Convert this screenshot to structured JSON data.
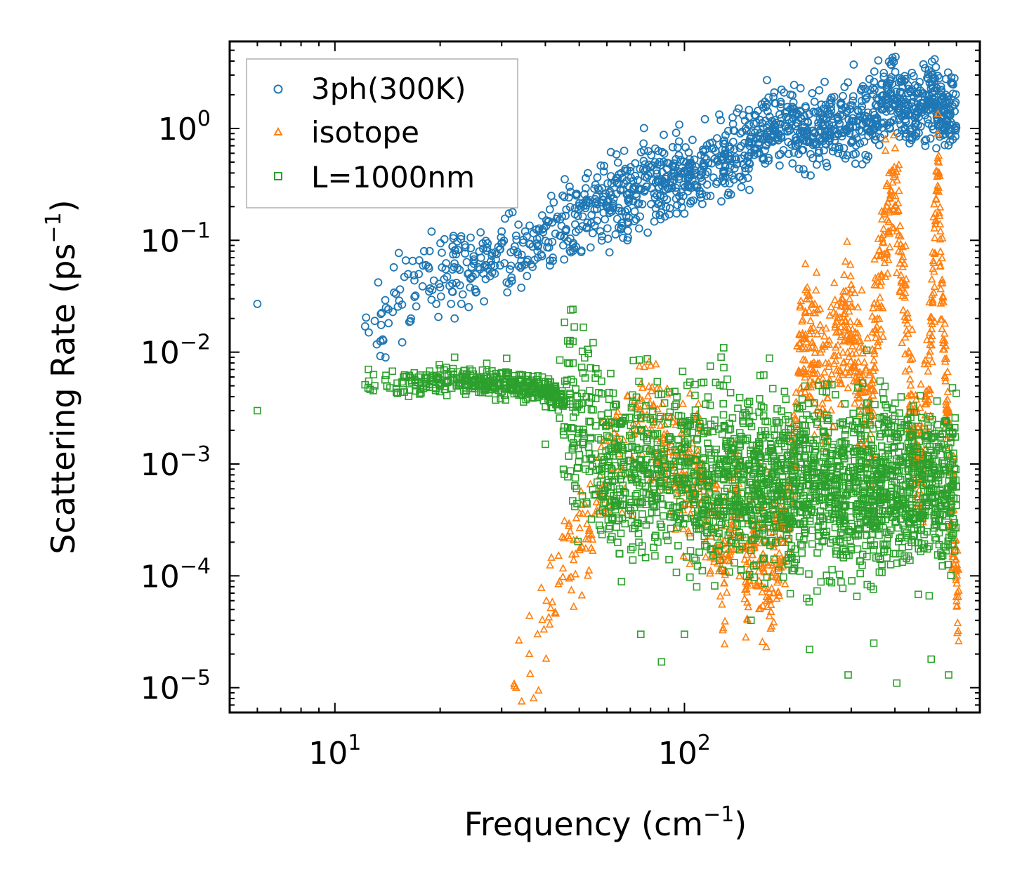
{
  "chart_data": {
    "type": "scatter",
    "xscale": "log",
    "yscale": "log",
    "xlim": [
      5,
      700
    ],
    "ylim": [
      6e-06,
      6
    ],
    "xlabel": {
      "base": "Frequency (cm",
      "sup": "−1",
      "close": ")"
    },
    "ylabel": {
      "base": "Scattering Rate (ps",
      "sup": "−1",
      "close": ")"
    },
    "x_ticks": [
      {
        "value": 10,
        "base": "10",
        "exp": "1"
      },
      {
        "value": 100,
        "base": "10",
        "exp": "2"
      }
    ],
    "y_ticks": [
      {
        "value": 1,
        "base": "10",
        "exp": "0"
      },
      {
        "value": 0.1,
        "base": "10",
        "exp": "−1"
      },
      {
        "value": 0.01,
        "base": "10",
        "exp": "−2"
      },
      {
        "value": 0.001,
        "base": "10",
        "exp": "−3"
      },
      {
        "value": 0.0001,
        "base": "10",
        "exp": "−4"
      },
      {
        "value": 1e-05,
        "base": "10",
        "exp": "−5"
      }
    ],
    "legend_position": "top-left",
    "series": [
      {
        "name": "3ph(300K)",
        "marker": "circle",
        "color": "#1f77b4",
        "trend": [
          [
            12,
            0.017
          ],
          [
            13,
            0.015
          ],
          [
            15,
            0.03
          ],
          [
            18,
            0.04
          ],
          [
            22,
            0.06
          ],
          [
            30,
            0.07
          ],
          [
            40,
            0.1
          ],
          [
            50,
            0.15
          ],
          [
            60,
            0.22
          ],
          [
            80,
            0.33
          ],
          [
            100,
            0.38
          ],
          [
            140,
            0.55
          ],
          [
            170,
            1.0
          ],
          [
            200,
            1.1
          ],
          [
            230,
            0.9
          ],
          [
            280,
            1.1
          ],
          [
            340,
            1.4
          ],
          [
            380,
            1.8
          ],
          [
            400,
            2.5
          ],
          [
            430,
            1.5
          ],
          [
            480,
            1.7
          ],
          [
            520,
            2.0
          ],
          [
            560,
            1.2
          ],
          [
            600,
            1.5
          ]
        ],
        "spread": 0.35,
        "count": 1400,
        "points": [
          [
            6,
            0.027
          ],
          [
            12.2,
            0.017
          ],
          [
            12.5,
            0.015
          ],
          [
            13,
            0.019
          ],
          [
            13.3,
            0.042
          ],
          [
            13.7,
            0.013
          ],
          [
            14,
            0.025
          ],
          [
            16.5,
            0.02
          ],
          [
            17,
            0.032
          ],
          [
            18,
            0.08
          ],
          [
            18.2,
            0.06
          ],
          [
            19,
            0.036
          ],
          [
            19.5,
            0.027
          ],
          [
            20,
            0.038
          ],
          [
            21.5,
            0.027
          ],
          [
            21.7,
            0.088
          ],
          [
            22,
            0.02
          ],
          [
            22.2,
            0.075
          ],
          [
            23,
            0.027
          ],
          [
            24,
            0.05
          ],
          [
            25,
            0.065
          ],
          [
            26,
            0.055
          ],
          [
            27,
            0.045
          ],
          [
            28,
            0.06
          ],
          [
            30,
            0.12
          ],
          [
            31,
            0.042
          ],
          [
            33,
            0.11
          ],
          [
            35,
            0.12
          ],
          [
            38,
            0.08
          ],
          [
            42,
            0.07
          ],
          [
            45,
            0.09
          ]
        ]
      },
      {
        "name": "isotope",
        "marker": "triangle",
        "color": "#ff7f0e",
        "trend": [
          [
            32,
            1e-05
          ],
          [
            35,
            1.8e-05
          ],
          [
            40,
            5e-05
          ],
          [
            45,
            0.00011
          ],
          [
            50,
            0.0002
          ],
          [
            55,
            0.0004
          ],
          [
            60,
            0.0008
          ],
          [
            65,
            0.0012
          ],
          [
            70,
            0.0015
          ],
          [
            75,
            0.0025
          ],
          [
            80,
            0.002
          ],
          [
            90,
            0.0012
          ],
          [
            100,
            0.0007
          ],
          [
            110,
            0.0009
          ],
          [
            120,
            0.0004
          ],
          [
            130,
            8e-05
          ],
          [
            140,
            0.0006
          ],
          [
            150,
            9e-05
          ],
          [
            160,
            0.0003
          ],
          [
            175,
            8e-05
          ],
          [
            190,
            0.0003
          ],
          [
            200,
            0.0004
          ],
          [
            215,
            0.012
          ],
          [
            230,
            0.01
          ],
          [
            250,
            0.005
          ],
          [
            270,
            0.01
          ],
          [
            290,
            0.025
          ],
          [
            310,
            0.008
          ],
          [
            340,
            0.003
          ],
          [
            360,
            0.03
          ],
          [
            380,
            0.15
          ],
          [
            400,
            0.3
          ],
          [
            420,
            0.05
          ],
          [
            450,
            0.002
          ],
          [
            480,
            0.0008
          ],
          [
            510,
            0.02
          ],
          [
            530,
            0.5
          ],
          [
            550,
            0.02
          ],
          [
            580,
            0.0005
          ],
          [
            610,
            5e-05
          ]
        ],
        "spread": 0.6,
        "count": 1400,
        "points": [
          [
            33,
            1e-05
          ],
          [
            36,
            2e-05
          ],
          [
            38,
            3e-05
          ],
          [
            300,
            0.04
          ],
          [
            308,
            0.015
          ],
          [
            385,
            0.4
          ],
          [
            395,
            0.25
          ],
          [
            530,
            0.9
          ],
          [
            540,
            0.12
          ]
        ]
      },
      {
        "name": "L=1000nm",
        "marker": "square",
        "color": "#2ca02c",
        "trend": [
          [
            12,
            0.0055
          ],
          [
            15,
            0.0055
          ],
          [
            20,
            0.0055
          ],
          [
            25,
            0.0054
          ],
          [
            30,
            0.0052
          ],
          [
            35,
            0.005
          ],
          [
            40,
            0.0045
          ],
          [
            45,
            0.0035
          ],
          [
            50,
            0.0025
          ],
          [
            55,
            0.0015
          ],
          [
            60,
            0.0009
          ],
          [
            80,
            0.0009
          ],
          [
            100,
            0.0008
          ],
          [
            150,
            0.0008
          ],
          [
            195,
            0.0007
          ],
          [
            215,
            0.0007
          ],
          [
            300,
            0.0006
          ],
          [
            420,
            0.0007
          ],
          [
            480,
            0.0006
          ],
          [
            600,
            0.0006
          ]
        ],
        "spread": 0.8,
        "count": 2600,
        "points": [
          [
            6,
            0.003
          ],
          [
            12.5,
            0.0055
          ],
          [
            13,
            0.005
          ],
          [
            14,
            0.0062
          ],
          [
            17,
            0.0045
          ],
          [
            22,
            0.009
          ],
          [
            25,
            0.0055
          ],
          [
            31,
            0.0088
          ],
          [
            40,
            0.0015
          ],
          [
            44,
            0.0085
          ],
          [
            48,
            0.008
          ],
          [
            75,
            3e-05
          ],
          [
            86,
            1.7e-05
          ],
          [
            100,
            3e-05
          ],
          [
            155,
            4e-05
          ],
          [
            228,
            2.2e-05
          ],
          [
            294,
            1.3e-05
          ],
          [
            348,
            2.5e-05
          ],
          [
            405,
            1.1e-05
          ],
          [
            508,
            1.8e-05
          ],
          [
            570,
            1.3e-05
          ]
        ]
      }
    ]
  }
}
